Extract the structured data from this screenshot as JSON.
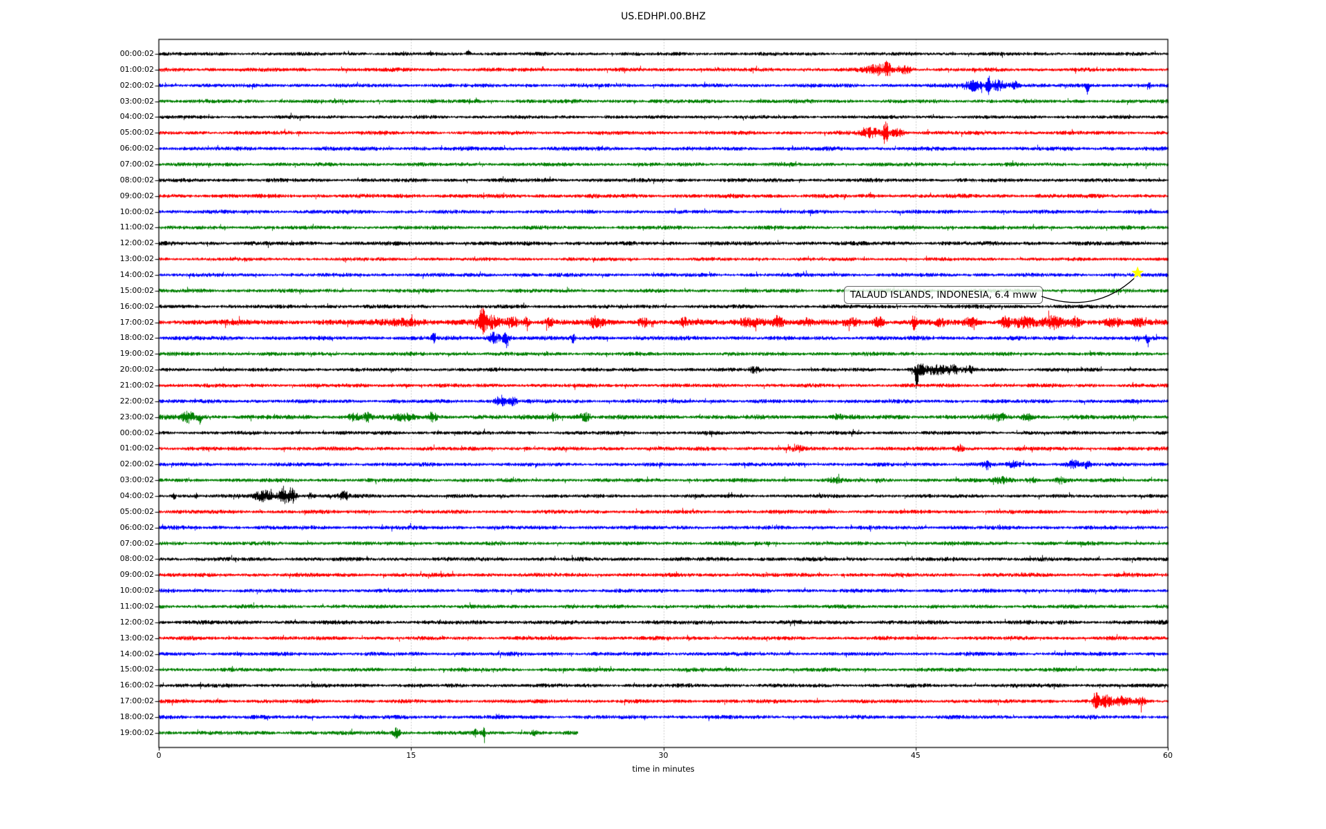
{
  "title": "US.EDHPI.00.BHZ",
  "chart_data": {
    "type": "line",
    "subtype": "helicorder-dayplot",
    "title": "US.EDHPI.00.BHZ",
    "xlabel": "time in minutes",
    "xlim": [
      0,
      60
    ],
    "x_ticks": [
      0,
      15,
      30,
      45,
      60
    ],
    "x_tick_labels": [
      "0",
      "15",
      "30",
      "45",
      "60"
    ],
    "gridline_minutes": [
      15,
      30,
      45
    ],
    "grid_style": "dotted-vertical",
    "trace_color_cycle": [
      "#000000",
      "#ff0000",
      "#0000ff",
      "#008000"
    ],
    "interval_minutes": 60,
    "rows": [
      {
        "label": "00:00:02",
        "color": "#000000",
        "base": 2.4,
        "end": 60,
        "events": [
          {
            "m": 18.4,
            "w": 0.12,
            "a": 6,
            "side": "up"
          }
        ]
      },
      {
        "label": "01:00:02",
        "color": "#ff0000",
        "base": 2.6,
        "end": 60,
        "events": [
          {
            "m": 42.8,
            "w": 0.7,
            "a": 7
          },
          {
            "m": 43.3,
            "w": 0.15,
            "a": 11
          },
          {
            "m": 44.4,
            "w": 0.35,
            "a": 5
          }
        ]
      },
      {
        "label": "02:00:02",
        "color": "#0000ff",
        "base": 2.6,
        "end": 60,
        "events": [
          {
            "m": 48.4,
            "w": 0.5,
            "a": 7
          },
          {
            "m": 49.3,
            "w": 0.12,
            "a": 12
          },
          {
            "m": 49.9,
            "w": 0.5,
            "a": 7
          },
          {
            "m": 50.9,
            "w": 0.25,
            "a": 5
          },
          {
            "m": 55.2,
            "w": 0.1,
            "a": 16,
            "side": "down"
          },
          {
            "m": 58.8,
            "w": 0.15,
            "a": 5
          }
        ]
      },
      {
        "label": "03:00:02",
        "color": "#008000",
        "base": 2.6,
        "end": 60,
        "events": []
      },
      {
        "label": "04:00:02",
        "color": "#000000",
        "base": 2.4,
        "end": 60,
        "events": []
      },
      {
        "label": "05:00:02",
        "color": "#ff0000",
        "base": 2.6,
        "end": 60,
        "events": [
          {
            "m": 42.3,
            "w": 0.6,
            "a": 6
          },
          {
            "m": 43.2,
            "w": 0.12,
            "a": 19
          },
          {
            "m": 43.9,
            "w": 0.4,
            "a": 5
          }
        ]
      },
      {
        "label": "06:00:02",
        "color": "#0000ff",
        "base": 2.8,
        "end": 60,
        "events": []
      },
      {
        "label": "07:00:02",
        "color": "#008000",
        "base": 2.6,
        "end": 60,
        "events": []
      },
      {
        "label": "08:00:02",
        "color": "#000000",
        "base": 2.6,
        "end": 60,
        "events": []
      },
      {
        "label": "09:00:02",
        "color": "#ff0000",
        "base": 2.8,
        "end": 60,
        "events": []
      },
      {
        "label": "10:00:02",
        "color": "#0000ff",
        "base": 2.6,
        "end": 60,
        "events": []
      },
      {
        "label": "11:00:02",
        "color": "#008000",
        "base": 2.6,
        "end": 60,
        "events": []
      },
      {
        "label": "12:00:02",
        "color": "#000000",
        "base": 2.8,
        "end": 60,
        "events": []
      },
      {
        "label": "13:00:02",
        "color": "#ff0000",
        "base": 2.4,
        "end": 60,
        "events": []
      },
      {
        "label": "14:00:02",
        "color": "#0000ff",
        "base": 2.6,
        "end": 60,
        "events": []
      },
      {
        "label": "15:00:02",
        "color": "#008000",
        "base": 2.6,
        "end": 60,
        "events": []
      },
      {
        "label": "16:00:02",
        "color": "#000000",
        "base": 2.6,
        "end": 60,
        "events": []
      },
      {
        "label": "17:00:02",
        "color": "#ff0000",
        "base": 3.6,
        "end": 60,
        "events": [
          {
            "m": 14.5,
            "w": 1.2,
            "a": 4
          },
          {
            "m": 19.2,
            "w": 0.15,
            "a": 18
          },
          {
            "m": 19.7,
            "w": 0.6,
            "a": 8
          },
          {
            "m": 21.0,
            "w": 0.3,
            "a": 7
          },
          {
            "m": 21.8,
            "w": 0.2,
            "a": 6
          },
          {
            "m": 23.2,
            "w": 0.25,
            "a": 5
          },
          {
            "m": 26.0,
            "w": 0.4,
            "a": 6
          },
          {
            "m": 28.8,
            "w": 0.3,
            "a": 5
          },
          {
            "m": 31.2,
            "w": 0.2,
            "a": 5
          },
          {
            "m": 35.3,
            "w": 0.8,
            "a": 6
          },
          {
            "m": 36.8,
            "w": 0.3,
            "a": 8
          },
          {
            "m": 38.5,
            "w": 0.3,
            "a": 4
          },
          {
            "m": 41.2,
            "w": 0.5,
            "a": 5
          },
          {
            "m": 42.8,
            "w": 0.3,
            "a": 6
          },
          {
            "m": 44.9,
            "w": 0.12,
            "a": 12
          },
          {
            "m": 46.5,
            "w": 0.3,
            "a": 4
          },
          {
            "m": 48.3,
            "w": 0.4,
            "a": 5
          },
          {
            "m": 50.3,
            "w": 0.3,
            "a": 7
          },
          {
            "m": 51.5,
            "w": 0.8,
            "a": 6
          },
          {
            "m": 53.2,
            "w": 0.6,
            "a": 7
          },
          {
            "m": 54.5,
            "w": 0.3,
            "a": 6
          },
          {
            "m": 56.8,
            "w": 0.5,
            "a": 5
          },
          {
            "m": 58.2,
            "w": 0.4,
            "a": 5
          }
        ]
      },
      {
        "label": "18:00:02",
        "color": "#0000ff",
        "base": 2.8,
        "end": 60,
        "events": [
          {
            "m": 16.3,
            "w": 0.1,
            "a": 7
          },
          {
            "m": 19.9,
            "w": 0.35,
            "a": 7
          },
          {
            "m": 20.6,
            "w": 0.25,
            "a": 6
          },
          {
            "m": 24.6,
            "w": 0.12,
            "a": 6
          },
          {
            "m": 58.8,
            "w": 0.08,
            "a": 13,
            "side": "down"
          }
        ]
      },
      {
        "label": "19:00:02",
        "color": "#008000",
        "base": 2.6,
        "end": 60,
        "events": []
      },
      {
        "label": "20:00:02",
        "color": "#000000",
        "base": 2.5,
        "end": 60,
        "events": [
          {
            "m": 35.4,
            "w": 0.3,
            "a": 4
          },
          {
            "m": 45.05,
            "w": 0.1,
            "a": 33,
            "side": "down"
          },
          {
            "m": 45.3,
            "w": 0.4,
            "a": 7
          },
          {
            "m": 46.2,
            "w": 0.5,
            "a": 7
          },
          {
            "m": 47.2,
            "w": 0.4,
            "a": 6
          },
          {
            "m": 48.2,
            "w": 0.3,
            "a": 4
          }
        ]
      },
      {
        "label": "21:00:02",
        "color": "#ff0000",
        "base": 2.6,
        "end": 60,
        "events": []
      },
      {
        "label": "22:00:02",
        "color": "#0000ff",
        "base": 2.6,
        "end": 60,
        "events": [
          {
            "m": 20.3,
            "w": 0.3,
            "a": 8
          },
          {
            "m": 21.0,
            "w": 0.25,
            "a": 6
          }
        ]
      },
      {
        "label": "23:00:02",
        "color": "#008000",
        "base": 3.0,
        "end": 60,
        "events": [
          {
            "m": 1.7,
            "w": 0.4,
            "a": 7
          },
          {
            "m": 2.4,
            "w": 0.15,
            "a": 9,
            "side": "down"
          },
          {
            "m": 11.6,
            "w": 0.3,
            "a": 5
          },
          {
            "m": 12.4,
            "w": 0.25,
            "a": 6
          },
          {
            "m": 14.6,
            "w": 0.6,
            "a": 4
          },
          {
            "m": 16.3,
            "w": 0.25,
            "a": 5
          },
          {
            "m": 23.4,
            "w": 0.3,
            "a": 5
          },
          {
            "m": 25.3,
            "w": 0.4,
            "a": 5
          },
          {
            "m": 40.3,
            "w": 0.3,
            "a": 3
          },
          {
            "m": 50.0,
            "w": 0.5,
            "a": 4
          },
          {
            "m": 51.6,
            "w": 0.3,
            "a": 4
          }
        ]
      },
      {
        "label": "00:00:02",
        "color": "#000000",
        "base": 2.5,
        "end": 60,
        "events": []
      },
      {
        "label": "01:00:02",
        "color": "#ff0000",
        "base": 2.7,
        "end": 60,
        "events": [
          {
            "m": 38.0,
            "w": 0.4,
            "a": 3
          },
          {
            "m": 47.6,
            "w": 0.25,
            "a": 5
          }
        ]
      },
      {
        "label": "02:00:02",
        "color": "#0000ff",
        "base": 2.6,
        "end": 60,
        "events": [
          {
            "m": 49.2,
            "w": 0.2,
            "a": 8
          },
          {
            "m": 50.8,
            "w": 0.3,
            "a": 4
          },
          {
            "m": 54.4,
            "w": 0.4,
            "a": 6
          },
          {
            "m": 55.2,
            "w": 0.2,
            "a": 5
          }
        ]
      },
      {
        "label": "03:00:02",
        "color": "#008000",
        "base": 2.6,
        "end": 60,
        "events": [
          {
            "m": 40.2,
            "w": 0.4,
            "a": 3
          },
          {
            "m": 50.1,
            "w": 0.5,
            "a": 4
          },
          {
            "m": 51.9,
            "w": 0.3,
            "a": 4
          },
          {
            "m": 53.6,
            "w": 0.25,
            "a": 4
          }
        ]
      },
      {
        "label": "04:00:02",
        "color": "#000000",
        "base": 2.5,
        "end": 60,
        "events": [
          {
            "m": 0.9,
            "w": 0.08,
            "a": 5
          },
          {
            "m": 2.2,
            "w": 0.08,
            "a": 5
          },
          {
            "m": 6.2,
            "w": 0.5,
            "a": 8
          },
          {
            "m": 7.4,
            "w": 0.3,
            "a": 13
          },
          {
            "m": 7.9,
            "w": 0.25,
            "a": 10
          },
          {
            "m": 9.0,
            "w": 0.2,
            "a": 4
          },
          {
            "m": 11.0,
            "w": 0.3,
            "a": 6
          }
        ]
      },
      {
        "label": "05:00:02",
        "color": "#ff0000",
        "base": 2.6,
        "end": 60,
        "events": []
      },
      {
        "label": "06:00:02",
        "color": "#0000ff",
        "base": 2.7,
        "end": 60,
        "events": []
      },
      {
        "label": "07:00:02",
        "color": "#008000",
        "base": 2.6,
        "end": 60,
        "events": []
      },
      {
        "label": "08:00:02",
        "color": "#000000",
        "base": 2.7,
        "end": 60,
        "events": []
      },
      {
        "label": "09:00:02",
        "color": "#ff0000",
        "base": 2.7,
        "end": 60,
        "events": []
      },
      {
        "label": "10:00:02",
        "color": "#0000ff",
        "base": 2.6,
        "end": 60,
        "events": []
      },
      {
        "label": "11:00:02",
        "color": "#008000",
        "base": 2.6,
        "end": 60,
        "events": []
      },
      {
        "label": "12:00:02",
        "color": "#000000",
        "base": 2.8,
        "end": 60,
        "events": []
      },
      {
        "label": "13:00:02",
        "color": "#ff0000",
        "base": 2.6,
        "end": 60,
        "events": []
      },
      {
        "label": "14:00:02",
        "color": "#0000ff",
        "base": 2.6,
        "end": 60,
        "events": []
      },
      {
        "label": "15:00:02",
        "color": "#008000",
        "base": 2.6,
        "end": 60,
        "events": []
      },
      {
        "label": "16:00:02",
        "color": "#000000",
        "base": 2.6,
        "end": 60,
        "events": []
      },
      {
        "label": "17:00:02",
        "color": "#ff0000",
        "base": 2.6,
        "end": 60,
        "events": [
          {
            "m": 55.7,
            "w": 0.15,
            "a": 13
          },
          {
            "m": 56.3,
            "w": 0.4,
            "a": 7
          },
          {
            "m": 57.3,
            "w": 0.5,
            "a": 6
          },
          {
            "m": 58.4,
            "w": 0.25,
            "a": 5
          }
        ]
      },
      {
        "label": "18:00:02",
        "color": "#0000ff",
        "base": 2.7,
        "end": 60,
        "events": []
      },
      {
        "label": "19:00:02",
        "color": "#008000",
        "base": 2.7,
        "end": 24.9,
        "events": [
          {
            "m": 14.1,
            "w": 0.2,
            "a": 7
          },
          {
            "m": 18.8,
            "w": 0.1,
            "a": 5
          },
          {
            "m": 19.3,
            "w": 0.1,
            "a": 5
          },
          {
            "m": 22.3,
            "w": 0.15,
            "a": 4
          }
        ]
      }
    ],
    "event_marker": {
      "symbol": "star",
      "color": "#ffff00",
      "row_index": 14,
      "row_label": "14:00:02",
      "minute": 58.2
    },
    "annotation": {
      "text": "TALAUD ISLANDS, INDONESIA, 6.4 mww"
    }
  }
}
